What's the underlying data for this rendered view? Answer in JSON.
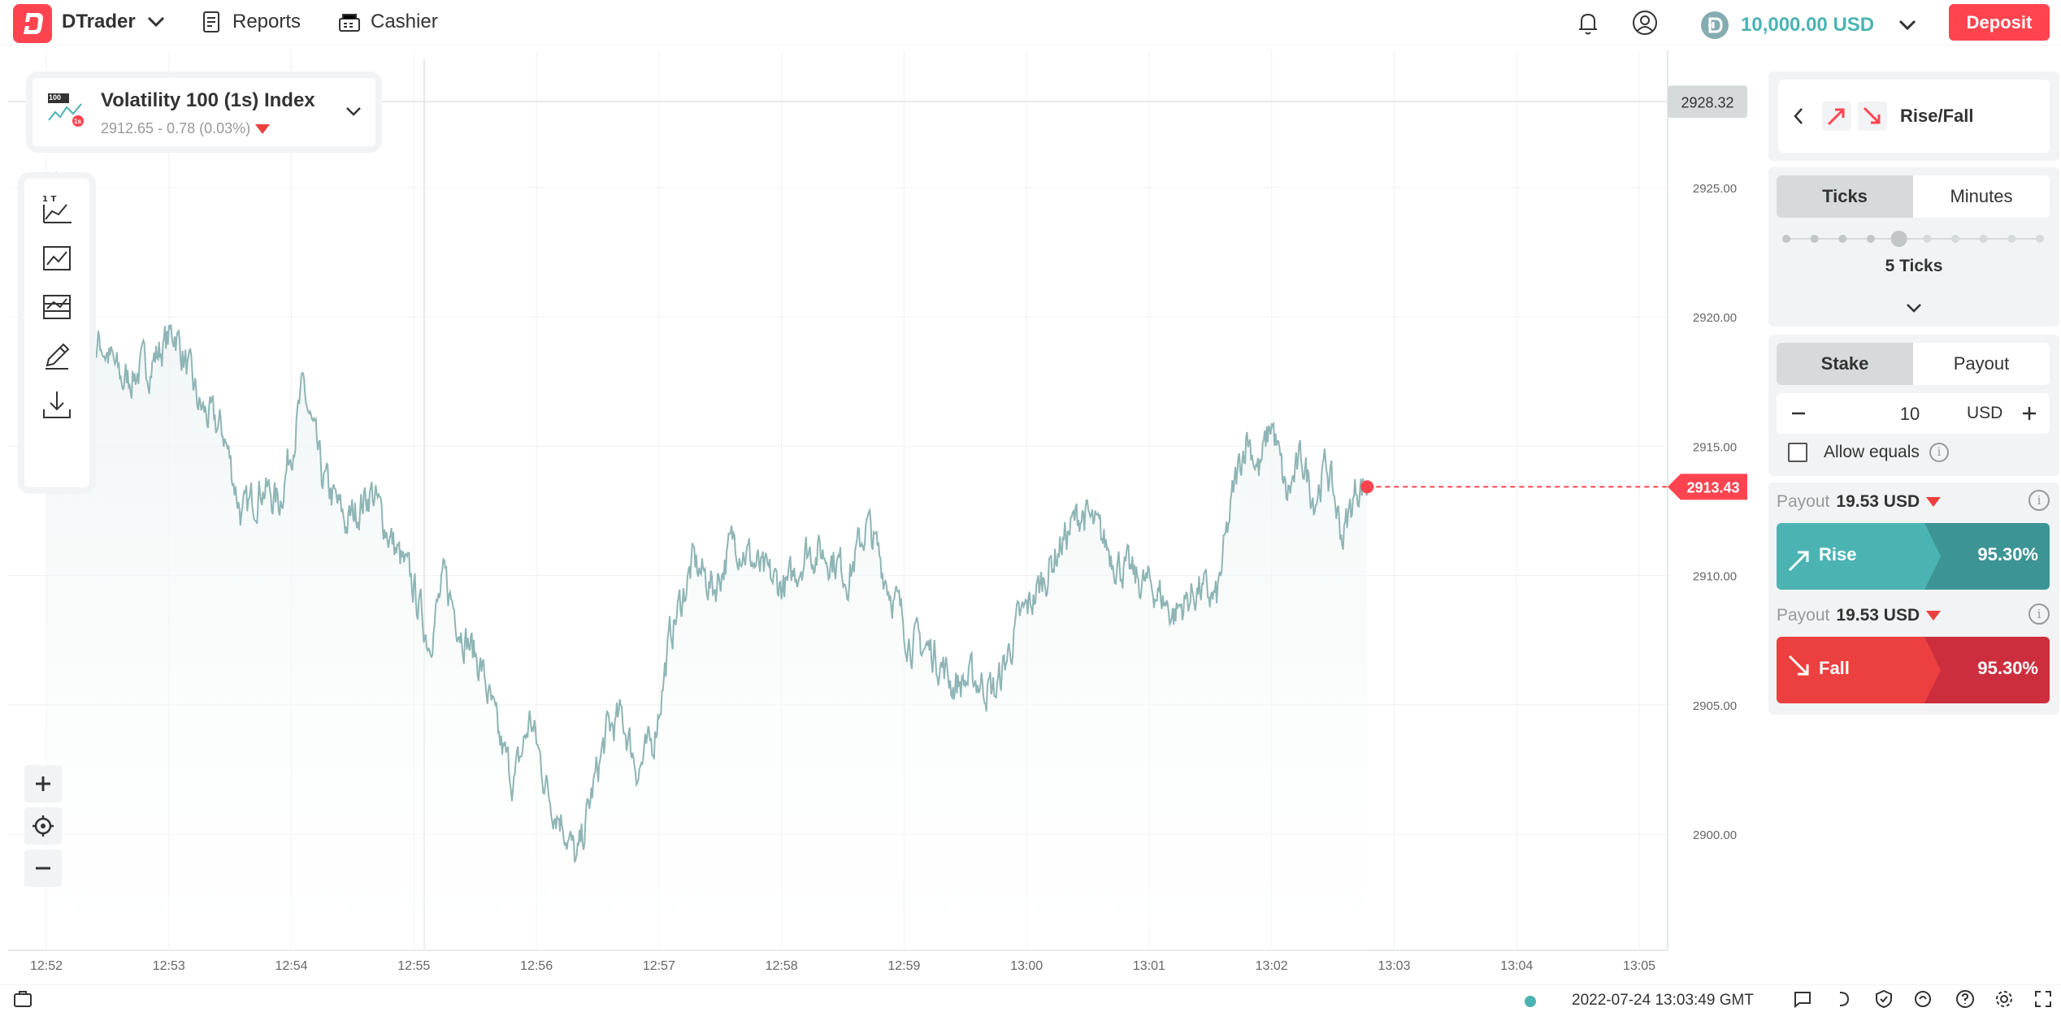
{
  "header": {
    "brand": "DTrader",
    "nav": [
      {
        "label": "Reports",
        "icon": "reports-icon"
      },
      {
        "label": "Cashier",
        "icon": "cashier-icon"
      }
    ],
    "balance": "10,000.00 USD",
    "deposit_label": "Deposit",
    "colors": {
      "accent": "#ff444f",
      "balance": "#4bb4b3"
    }
  },
  "symbol": {
    "name": "Volatility 100 (1s) Index",
    "price_line": "2912.65 - 0.78 (0.03%)",
    "icon_badge": "100",
    "icon_sub": "1s"
  },
  "chart_data": {
    "type": "line",
    "x_ticks": [
      "12:52",
      "12:53",
      "12:54",
      "12:55",
      "12:56",
      "12:57",
      "12:58",
      "12:59",
      "13:00",
      "13:01",
      "13:02",
      "13:03",
      "13:04",
      "13:05"
    ],
    "y_ticks": [
      "2925.00",
      "2920.00",
      "2915.00",
      "2910.00",
      "2905.00",
      "2900.00"
    ],
    "ylim": [
      2896.8,
      2931.5
    ],
    "x_range_minutes": [
      "12:51:50",
      "13:05:20"
    ],
    "high_label": "2928.32",
    "current_label": "2913.43",
    "anchors": [
      [
        0.0,
        2918.0
      ],
      [
        0.08,
        2925.2
      ],
      [
        0.15,
        2921.5
      ],
      [
        0.28,
        2918.5
      ],
      [
        0.45,
        2919.0
      ],
      [
        0.62,
        2917.5
      ],
      [
        0.85,
        2918.2
      ],
      [
        1.05,
        2919.5
      ],
      [
        1.25,
        2916.5
      ],
      [
        1.45,
        2915.5
      ],
      [
        1.6,
        2912.2
      ],
      [
        1.75,
        2913.5
      ],
      [
        1.9,
        2912.8
      ],
      [
        2.0,
        2915.0
      ],
      [
        2.1,
        2917.2
      ],
      [
        2.25,
        2913.8
      ],
      [
        2.45,
        2912.0
      ],
      [
        2.65,
        2913.3
      ],
      [
        2.85,
        2911.0
      ],
      [
        3.0,
        2909.5
      ],
      [
        3.12,
        2907.5
      ],
      [
        3.25,
        2909.8
      ],
      [
        3.4,
        2907.8
      ],
      [
        3.55,
        2906.5
      ],
      [
        3.7,
        2903.5
      ],
      [
        3.82,
        2902.0
      ],
      [
        3.95,
        2904.5
      ],
      [
        4.1,
        2901.5
      ],
      [
        4.22,
        2900.5
      ],
      [
        4.33,
        2898.8
      ],
      [
        4.45,
        2901.5
      ],
      [
        4.58,
        2904.0
      ],
      [
        4.7,
        2904.5
      ],
      [
        4.83,
        2902.5
      ],
      [
        4.95,
        2903.5
      ],
      [
        5.1,
        2907.8
      ],
      [
        5.28,
        2910.5
      ],
      [
        5.45,
        2909.5
      ],
      [
        5.62,
        2911.5
      ],
      [
        5.85,
        2910.0
      ],
      [
        6.05,
        2909.5
      ],
      [
        6.2,
        2911.0
      ],
      [
        6.4,
        2910.8
      ],
      [
        6.55,
        2910.0
      ],
      [
        6.7,
        2912.0
      ],
      [
        6.85,
        2910.0
      ],
      [
        7.05,
        2907.5
      ],
      [
        7.25,
        2907.0
      ],
      [
        7.4,
        2905.8
      ],
      [
        7.58,
        2906.0
      ],
      [
        7.75,
        2905.5
      ],
      [
        7.92,
        2908.0
      ],
      [
        8.1,
        2909.5
      ],
      [
        8.28,
        2911.2
      ],
      [
        8.45,
        2912.5
      ],
      [
        8.6,
        2911.5
      ],
      [
        8.75,
        2910.5
      ],
      [
        8.9,
        2909.8
      ],
      [
        9.05,
        2909.5
      ],
      [
        9.2,
        2908.5
      ],
      [
        9.4,
        2909.5
      ],
      [
        9.55,
        2909.0
      ],
      [
        9.7,
        2913.5
      ],
      [
        9.8,
        2915.5
      ],
      [
        9.9,
        2914.0
      ],
      [
        10.0,
        2916.0
      ],
      [
        10.12,
        2913.0
      ],
      [
        10.25,
        2914.5
      ],
      [
        10.35,
        2913.0
      ],
      [
        10.45,
        2914.3
      ],
      [
        10.58,
        2911.5
      ],
      [
        10.7,
        2913.5
      ],
      [
        10.78,
        2913.43
      ]
    ]
  },
  "panel": {
    "trade_type": "Rise/Fall",
    "duration_tabs": [
      {
        "label": "Ticks",
        "active": true
      },
      {
        "label": "Minutes",
        "active": false
      }
    ],
    "ticks_selected": 5,
    "ticks_total": 10,
    "ticks_label": "5 Ticks",
    "amount_tabs": [
      {
        "label": "Stake",
        "active": true
      },
      {
        "label": "Payout",
        "active": false
      }
    ],
    "stake_value": "10",
    "currency": "USD",
    "allow_equals_label": "Allow equals",
    "allow_equals_checked": false,
    "rise": {
      "payout_label": "Payout",
      "payout_value": "19.53 USD",
      "name": "Rise",
      "pct": "95.30%",
      "color": "#4bb4b3",
      "color_dark": "#3d9494"
    },
    "fall": {
      "payout_label": "Payout",
      "payout_value": "19.53 USD",
      "name": "Fall",
      "pct": "95.30%",
      "color": "#ec3f3f",
      "color_dark": "#cc2e3d"
    }
  },
  "footer": {
    "time": "2022-07-24 13:03:49 GMT",
    "icons": [
      "positions-icon",
      "chat-icon",
      "endpoint-icon",
      "secure-icon",
      "network-icon",
      "help-icon",
      "settings-icon",
      "fullscreen-icon"
    ]
  }
}
